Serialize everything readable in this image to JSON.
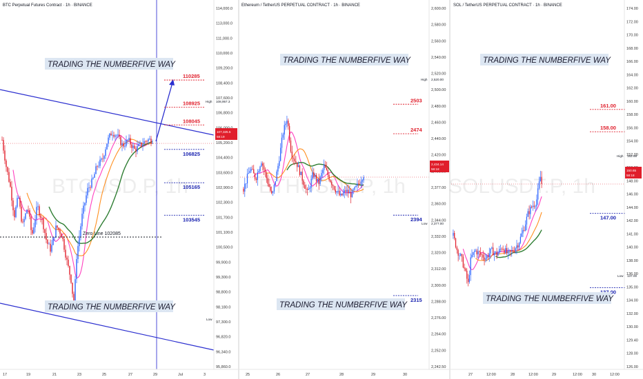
{
  "colors": {
    "up": "#2962ff",
    "down": "#e01e2b",
    "fast": "#ff3fbf",
    "mid": "#ff8f1f",
    "slow": "#2e7d32",
    "level_red": "#e01e2b",
    "level_blue": "#1a23b0",
    "trend": "#2a2ecf"
  },
  "chart_data": [
    {
      "type": "candlestick",
      "title": "BTC Perpetual Futures Contract · 1h · BINANCE",
      "watermark": "BTCUSD.P, 1h",
      "brand_top": "TRADING THE NUMBERFIVE WAY",
      "brand_bottom": "TRADING THE NUMBERFIVE WAY",
      "ylim": [
        95860,
        114000
      ],
      "y_ticks": [
        "114,000.0",
        "113,000.0",
        "111,000.0",
        "110,000.0",
        "109,200.0",
        "108,400.0",
        "107,600.0",
        "106,800.0",
        "106,000.0",
        "105,200.0",
        "104,400.0",
        "103,600.0",
        "102,900.0",
        "102,300.0",
        "101,700.0",
        "101,100.0",
        "100,500.0",
        "99,900.0",
        "99,300.0",
        "98,800.0",
        "98,180.0",
        "97,300.0",
        "96,820.0",
        "96,340.0",
        "95,860.0"
      ],
      "x_ticks": [
        "17",
        "19",
        "21",
        "23",
        "25",
        "27",
        "29",
        "Jul",
        "3"
      ],
      "levels_red": [
        {
          "label": "110285",
          "value": 110285
        },
        {
          "label": "108925",
          "value": 108925
        },
        {
          "label": "108045",
          "value": 108045
        }
      ],
      "levels_blue": [
        {
          "label": "106825",
          "value": 106825
        },
        {
          "label": "105165",
          "value": 105165
        },
        {
          "label": "103545",
          "value": 103545
        }
      ],
      "zero_line": {
        "label": "Zero Line   102085",
        "value": 102085
      },
      "high": {
        "label": "High",
        "value": "108,957.3"
      },
      "low": {
        "label": "Low",
        "value": "98,180.0"
      },
      "price_tag": {
        "value": "107,325.5",
        "timer": "58:19"
      }
    },
    {
      "type": "candlestick",
      "title": "Ethereum / TetherUS PERPETUAL CONTRACT · 1h · BINANCE",
      "watermark": "ETHUSDT.P, 1h",
      "brand_top": "TRADING THE NUMBERFIVE WAY",
      "brand_bottom": "TRADING THE NUMBERFIVE WAY",
      "ylim": [
        2242.5,
        2600
      ],
      "y_ticks": [
        "2,600.00",
        "2,580.00",
        "2,560.00",
        "2,540.00",
        "2,520.00",
        "2,500.00",
        "2,480.00",
        "2,460.00",
        "2,440.00",
        "2,420.00",
        "2,400.00",
        "2,377.00",
        "2,360.00",
        "2,344.00",
        "2,332.00",
        "2,320.00",
        "2,312.00",
        "2,300.00",
        "2,288.00",
        "2,276.00",
        "2,264.00",
        "2,252.00",
        "2,242.50"
      ],
      "x_ticks": [
        "25",
        "26",
        "27",
        "28",
        "29",
        "30"
      ],
      "levels_red": [
        {
          "label": "2503",
          "value": 2503
        },
        {
          "label": "2474",
          "value": 2474
        }
      ],
      "levels_blue": [
        {
          "label": "2394",
          "value": 2394
        },
        {
          "label": "2315",
          "value": 2315
        }
      ],
      "high": {
        "label": "High",
        "value": "2,520.00"
      },
      "low": {
        "label": "Low",
        "value": "2,377.00"
      },
      "price_tag": {
        "value": "2,434.14",
        "timer": "58:18"
      }
    },
    {
      "type": "candlestick",
      "title": "SOL / TetherUS PERPETUAL CONTRACT · 1h · BINANCE",
      "watermark": "SOLUSDT.P, 1h",
      "brand_top": "TRADING THE NUMBERFIVE WAY",
      "brand_bottom": "TRADING THE NUMBERFIVE WAY",
      "ylim": [
        126,
        175
      ],
      "y_ticks": [
        "174.00",
        "172.00",
        "170.00",
        "168.00",
        "166.00",
        "164.00",
        "162.00",
        "160.00",
        "158.00",
        "156.00",
        "154.00",
        "152.00",
        "150.00",
        "148.00",
        "146.00",
        "144.00",
        "142.00",
        "141.00",
        "140.00",
        "138.00",
        "136.00",
        "135.00",
        "134.00",
        "132.00",
        "130.00",
        "129.40",
        "128.00",
        "126.00"
      ],
      "x_ticks": [
        "27",
        "12:00",
        "28",
        "12:00",
        "29",
        "12:00",
        "30",
        "12:00"
      ],
      "levels_red": [
        {
          "label": "161.00",
          "value": 161
        },
        {
          "label": "158.00",
          "value": 158
        }
      ],
      "levels_blue": [
        {
          "label": "147.00",
          "value": 147
        },
        {
          "label": "137.00",
          "value": 137
        }
      ],
      "high": {
        "label": "High",
        "value": "152.68"
      },
      "low": {
        "label": "Low",
        "value": "137.00"
      },
      "price_tag": {
        "value": "150.65",
        "timer": "58:18"
      }
    }
  ]
}
